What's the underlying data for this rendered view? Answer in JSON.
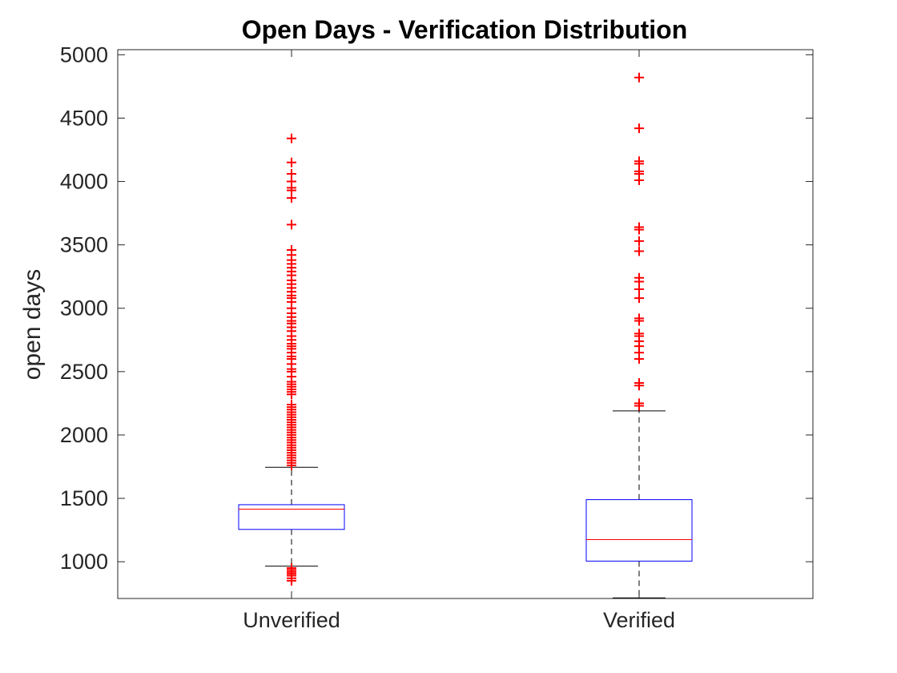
{
  "chart_data": {
    "type": "box",
    "title": "Open Days - Verification Distribution",
    "xlabel": "",
    "ylabel": "open days",
    "ylim": [
      710,
      5040
    ],
    "yticks": [
      1000,
      1500,
      2000,
      2500,
      3000,
      3500,
      4000,
      4500,
      5000
    ],
    "categories": [
      "Unverified",
      "Verified"
    ],
    "boxes": [
      {
        "category": "Unverified",
        "whisker_low": 965,
        "q1": 1255,
        "median": 1415,
        "q3": 1450,
        "whisker_high": 1745,
        "outliers": [
          850,
          870,
          890,
          905,
          920,
          935,
          950,
          1760,
          1780,
          1800,
          1820,
          1840,
          1860,
          1880,
          1900,
          1920,
          1940,
          1960,
          1980,
          2000,
          2020,
          2040,
          2060,
          2080,
          2100,
          2120,
          2140,
          2160,
          2180,
          2200,
          2220,
          2240,
          2320,
          2340,
          2360,
          2380,
          2400,
          2420,
          2460,
          2500,
          2520,
          2560,
          2600,
          2620,
          2650,
          2680,
          2700,
          2720,
          2750,
          2780,
          2820,
          2850,
          2880,
          2900,
          2930,
          2960,
          3000,
          3050,
          3080,
          3100,
          3130,
          3160,
          3190,
          3220,
          3260,
          3290,
          3320,
          3350,
          3380,
          3420,
          3460,
          3660,
          3870,
          3930,
          3950,
          4000,
          4060,
          4150,
          4340
        ]
      },
      {
        "category": "Verified",
        "whisker_low": 715,
        "q1": 1005,
        "median": 1175,
        "q3": 1490,
        "whisker_high": 2190,
        "outliers": [
          2230,
          2250,
          2390,
          2410,
          2600,
          2650,
          2700,
          2740,
          2780,
          2800,
          2900,
          2920,
          3080,
          3150,
          3210,
          3240,
          3450,
          3530,
          3620,
          3640,
          4010,
          4060,
          4080,
          4140,
          4160,
          4420,
          4820
        ]
      }
    ],
    "colors": {
      "box": "#0000ff",
      "median": "#ff0000",
      "whisker": "#000000",
      "outlier": "#ff0000",
      "axis": "#262626"
    },
    "grid": false,
    "legend": "none"
  }
}
